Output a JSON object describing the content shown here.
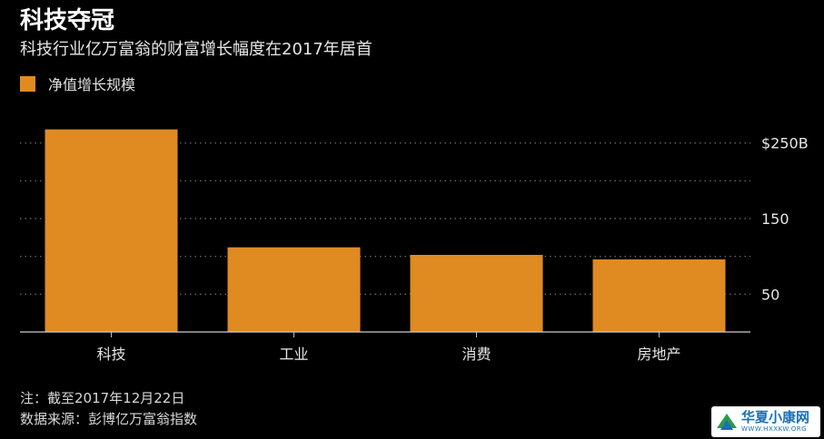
{
  "header": {
    "title": "科技夺冠",
    "subtitle": "科技行业亿万富翁的财富增长幅度在2017年居首"
  },
  "footer": {
    "note": "注：截至2017年12月22日",
    "source": "数据来源：彭博亿万富翁指数"
  },
  "watermark": {
    "name": "华夏小康网",
    "url": "WWW.HXXKW.ORG",
    "logo_icon": "leaf-logo-icon"
  },
  "colors": {
    "background": "#000000",
    "bar": "#e08a22",
    "grid": "#777777",
    "text": "#ffffff"
  },
  "chart_data": {
    "type": "bar",
    "title": "科技夺冠",
    "subtitle": "科技行业亿万富翁的财富增长幅度在2017年居首",
    "categories": [
      "科技",
      "工业",
      "消费",
      "房地产"
    ],
    "series": [
      {
        "name": "净值增长规模",
        "values": [
          268,
          112,
          102,
          96
        ]
      }
    ],
    "xlabel": "",
    "ylabel": "",
    "ylim": [
      0,
      300
    ],
    "yticks": [
      50,
      150,
      250
    ],
    "ytick_labels": [
      "50",
      "150",
      "$250B"
    ],
    "grid": true,
    "grid_style": "dotted",
    "legend": "top-left",
    "y_axis_side": "right"
  }
}
